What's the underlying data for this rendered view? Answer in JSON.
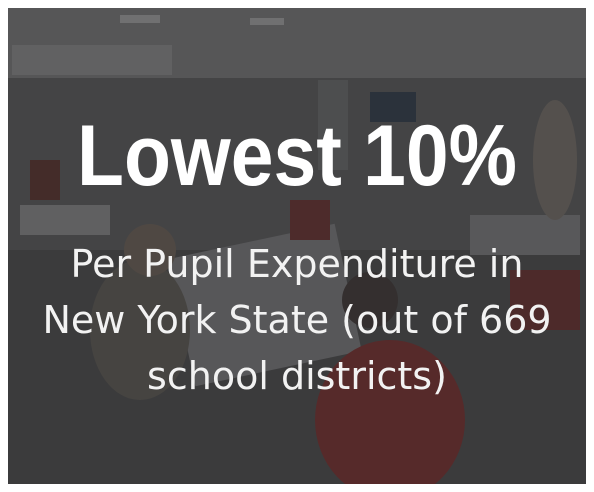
{
  "headline": "Lowest 10%",
  "caption": {
    "lines": [
      "Per Pupil Expenditure in",
      "New York State (out of 669",
      "school districts)"
    ]
  }
}
